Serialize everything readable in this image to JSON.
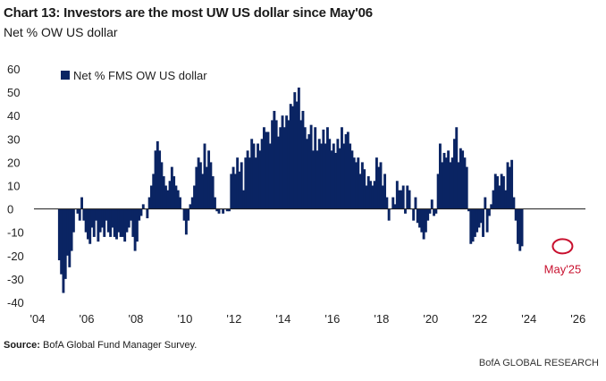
{
  "header": {
    "title": "Chart 13: Investors are the most UW US dollar since May'06",
    "subtitle": "Net % OW US dollar"
  },
  "footer": {
    "source_label": "Source:",
    "source_text": "BofA Global Fund Manager Survey.",
    "brand": "BofA GLOBAL RESEARCH"
  },
  "colors": {
    "bar": "#0a2463",
    "annotation": "#c8102e",
    "zero_line": "#1a1a1a"
  },
  "chart_data": {
    "type": "bar",
    "title": "Chart 13: Investors are the most UW US dollar since May'06",
    "ylabel": "Net % OW US dollar",
    "ylim": [
      -40,
      60
    ],
    "yticks": [
      60,
      50,
      40,
      30,
      20,
      10,
      0,
      -10,
      -20,
      -30,
      -40
    ],
    "xlim": [
      2004.0,
      2026.3
    ],
    "xticks": [
      {
        "value": 2004,
        "label": "'04"
      },
      {
        "value": 2006,
        "label": "'06"
      },
      {
        "value": 2008,
        "label": "'08"
      },
      {
        "value": 2010,
        "label": "'10"
      },
      {
        "value": 2012,
        "label": "'12"
      },
      {
        "value": 2014,
        "label": "'14"
      },
      {
        "value": 2016,
        "label": "'16"
      },
      {
        "value": 2018,
        "label": "'18"
      },
      {
        "value": 2020,
        "label": "'20"
      },
      {
        "value": 2022,
        "label": "'22"
      },
      {
        "value": 2024,
        "label": "'24"
      },
      {
        "value": 2026,
        "label": "'26"
      }
    ],
    "legend": {
      "label": "Net % FMS OW US dollar",
      "position": "top-left"
    },
    "annotation": {
      "label": "May'25",
      "x": 2025.37,
      "y": -16
    },
    "grid": false,
    "series": [
      {
        "name": "Net % FMS OW US dollar",
        "start": "2004-11",
        "frequency": "monthly",
        "values": [
          -22,
          -28,
          -36,
          -30,
          -20,
          -25,
          -18,
          -10,
          0,
          -2,
          -5,
          5,
          -5,
          -10,
          -13,
          -15,
          -8,
          -12,
          -5,
          -14,
          -10,
          -8,
          -12,
          -5,
          -10,
          -12,
          -8,
          -12,
          -13,
          -10,
          -12,
          -12,
          -14,
          -10,
          -8,
          -5,
          -12,
          -18,
          -14,
          -5,
          -3,
          2,
          0,
          -4,
          5,
          10,
          15,
          25,
          29,
          25,
          20,
          14,
          10,
          8,
          12,
          18,
          14,
          10,
          8,
          5,
          0,
          -5,
          -11,
          -5,
          2,
          5,
          10,
          18,
          22,
          20,
          15,
          28,
          18,
          25,
          20,
          14,
          5,
          -1,
          -2,
          0,
          -2,
          0,
          -1,
          -1,
          15,
          18,
          15,
          22,
          16,
          20,
          8,
          22,
          25,
          22,
          30,
          28,
          22,
          28,
          25,
          30,
          35,
          33,
          33,
          28,
          38,
          42,
          38,
          31,
          35,
          40,
          35,
          40,
          38,
          45,
          44,
          50,
          46,
          52,
          38,
          42,
          35,
          30,
          32,
          36,
          25,
          35,
          25,
          30,
          28,
          34,
          28,
          35,
          30,
          25,
          28,
          24,
          30,
          26,
          35,
          28,
          32,
          33,
          28,
          25,
          22,
          20,
          22,
          15,
          20,
          17,
          10,
          14,
          12,
          10,
          12,
          22,
          18,
          20,
          10,
          15,
          5,
          -5,
          0,
          5,
          2,
          12,
          8,
          8,
          10,
          -2,
          10,
          8,
          0,
          -5,
          5,
          -6,
          -8,
          -10,
          -13,
          -10,
          -5,
          -2,
          4,
          -3,
          -2,
          15,
          28,
          20,
          24,
          22,
          25,
          20,
          22,
          30,
          35,
          20,
          26,
          25,
          22,
          18,
          -1,
          -15,
          -14,
          -12,
          -10,
          -8,
          -6,
          -12,
          5,
          -10,
          -3,
          2,
          8,
          15,
          14,
          10,
          15,
          14,
          8,
          20,
          18,
          21,
          5,
          -5,
          -15,
          -18,
          -16
        ]
      }
    ]
  }
}
